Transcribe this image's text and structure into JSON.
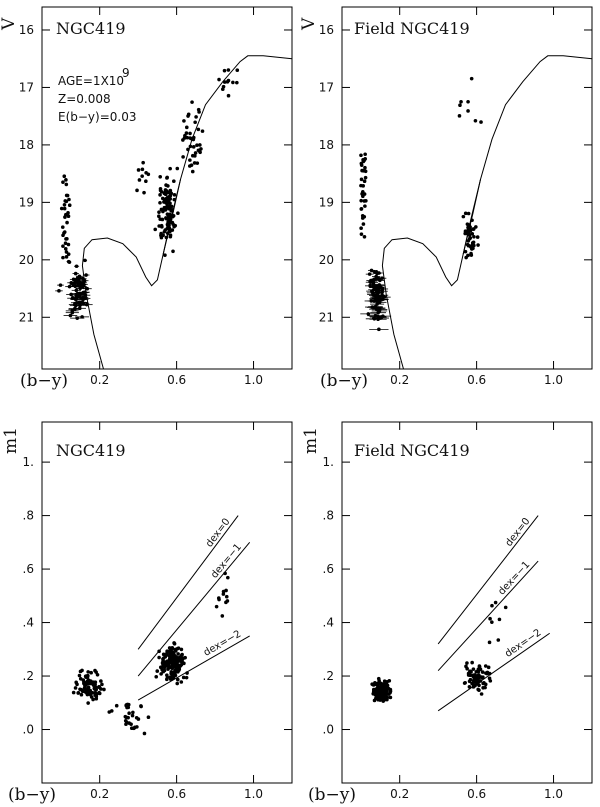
{
  "chart_data": [
    {
      "type": "scatter",
      "title": "NGC419",
      "xlabel": "(b−y)",
      "ylabel": "V",
      "xlim": [
        -0.1,
        1.2
      ],
      "ylim": [
        21.9,
        15.6
      ],
      "x_ticks": [
        "0.2",
        "0.6",
        "1.0"
      ],
      "y_ticks": [
        "16",
        "17",
        "18",
        "19",
        "20",
        "21"
      ],
      "annotations": [
        "AGE=1X10",
        "9",
        "Z=0.008",
        "E(b−y)=0.03"
      ],
      "isochrone": [
        [
          0.22,
          22
        ],
        [
          0.17,
          21.3
        ],
        [
          0.13,
          20.6
        ],
        [
          0.11,
          20.1
        ],
        [
          0.12,
          19.8
        ],
        [
          0.16,
          19.65
        ],
        [
          0.24,
          19.62
        ],
        [
          0.32,
          19.72
        ],
        [
          0.39,
          19.95
        ],
        [
          0.44,
          20.3
        ],
        [
          0.47,
          20.45
        ],
        [
          0.5,
          20.35
        ],
        [
          0.53,
          19.9
        ],
        [
          0.57,
          19.3
        ],
        [
          0.62,
          18.6
        ],
        [
          0.68,
          17.9
        ],
        [
          0.75,
          17.3
        ],
        [
          0.84,
          16.9
        ],
        [
          0.93,
          16.55
        ],
        [
          0.97,
          16.45
        ],
        [
          1.05,
          16.45
        ],
        [
          1.2,
          16.5
        ]
      ],
      "rgb_track": [
        [
          0.53,
          19.9
        ],
        [
          0.58,
          19.2
        ],
        [
          0.62,
          18.6
        ]
      ]
    },
    {
      "type": "scatter",
      "title": "Field NGC419",
      "xlabel": "(b−y)",
      "ylabel": "V",
      "xlim": [
        -0.1,
        1.2
      ],
      "ylim": [
        21.9,
        15.6
      ],
      "x_ticks": [
        "0.2",
        "0.6",
        "1.0"
      ],
      "y_ticks": [
        "16",
        "17",
        "18",
        "19",
        "20",
        "21"
      ],
      "isochrone": [
        [
          0.22,
          22
        ],
        [
          0.17,
          21.3
        ],
        [
          0.13,
          20.6
        ],
        [
          0.11,
          20.1
        ],
        [
          0.12,
          19.8
        ],
        [
          0.16,
          19.65
        ],
        [
          0.24,
          19.62
        ],
        [
          0.32,
          19.72
        ],
        [
          0.39,
          19.95
        ],
        [
          0.44,
          20.3
        ],
        [
          0.47,
          20.45
        ],
        [
          0.5,
          20.35
        ],
        [
          0.53,
          19.9
        ],
        [
          0.57,
          19.3
        ],
        [
          0.62,
          18.6
        ],
        [
          0.68,
          17.9
        ],
        [
          0.75,
          17.3
        ],
        [
          0.84,
          16.9
        ],
        [
          0.93,
          16.55
        ],
        [
          0.97,
          16.45
        ],
        [
          1.05,
          16.45
        ],
        [
          1.2,
          16.5
        ]
      ],
      "rgb_track": [
        [
          0.53,
          19.9
        ],
        [
          0.58,
          19.2
        ],
        [
          0.62,
          18.6
        ]
      ]
    },
    {
      "type": "scatter",
      "title": "NGC419",
      "xlabel": "(b−y)",
      "ylabel": "m1",
      "xlim": [
        -0.1,
        1.2
      ],
      "ylim": [
        -0.2,
        1.15
      ],
      "x_ticks": [
        "0.2",
        "0.6",
        "1.0"
      ],
      "y_ticks": [
        ".0",
        ".2",
        ".4",
        ".6",
        ".8",
        "1."
      ],
      "dex_lines": [
        {
          "label": "dex=0",
          "x": [
            0.4,
            0.92
          ],
          "y": [
            0.3,
            0.8
          ]
        },
        {
          "label": "dex=−1",
          "x": [
            0.4,
            0.98
          ],
          "y": [
            0.2,
            0.7
          ]
        },
        {
          "label": "dex=−2",
          "x": [
            0.4,
            0.98
          ],
          "y": [
            0.11,
            0.35
          ]
        }
      ]
    },
    {
      "type": "scatter",
      "title": "Field NGC419",
      "xlabel": "(b−y)",
      "ylabel": "m1",
      "xlim": [
        -0.1,
        1.2
      ],
      "ylim": [
        -0.2,
        1.15
      ],
      "x_ticks": [
        "0.2",
        "0.6",
        "1.0"
      ],
      "y_ticks": [
        ".0",
        ".2",
        ".4",
        ".6",
        ".8",
        "1."
      ],
      "dex_lines": [
        {
          "label": "dex=0",
          "x": [
            0.4,
            0.92
          ],
          "y": [
            0.32,
            0.8
          ]
        },
        {
          "label": "dex=−1",
          "x": [
            0.4,
            0.92
          ],
          "y": [
            0.22,
            0.63
          ]
        },
        {
          "label": "dex=−2",
          "x": [
            0.4,
            0.98
          ],
          "y": [
            0.07,
            0.36
          ]
        }
      ]
    }
  ]
}
